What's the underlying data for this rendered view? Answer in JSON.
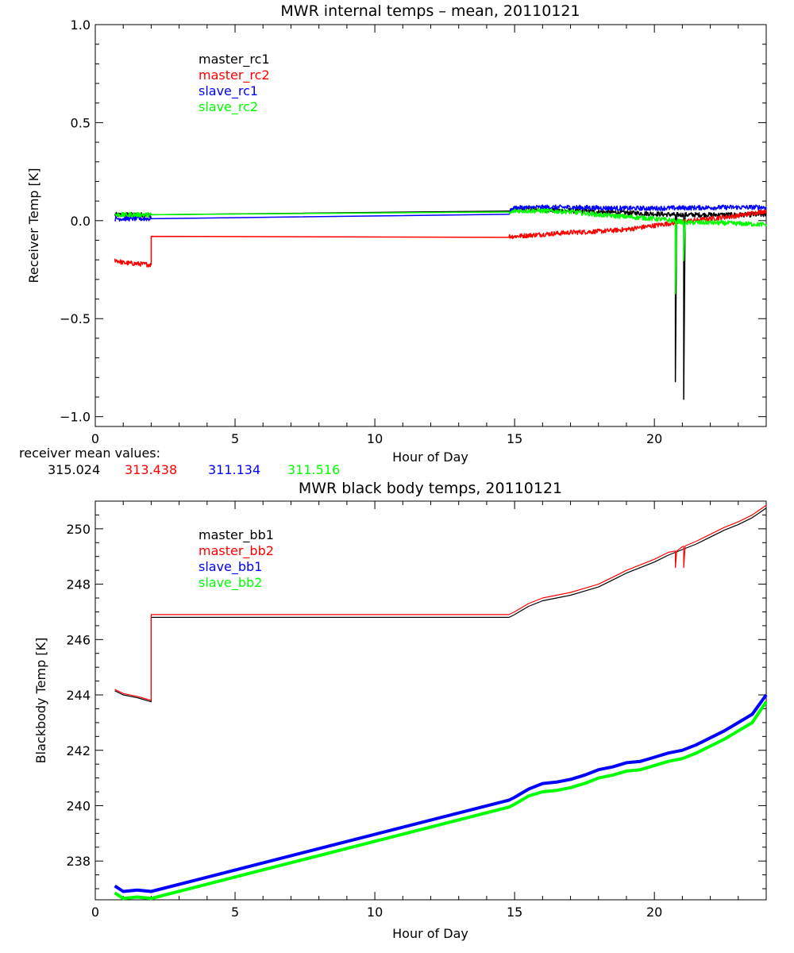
{
  "colors": {
    "black": "#000000",
    "red": "#ff0000",
    "blue": "#0000ff",
    "green": "#00ff00"
  },
  "receiver_mean": {
    "label": "receiver mean values:",
    "values": [
      {
        "text": "315.024",
        "color": "#000000"
      },
      {
        "text": "313.438",
        "color": "#ff0000"
      },
      {
        "text": "311.134",
        "color": "#0000ff"
      },
      {
        "text": "311.516",
        "color": "#00ff00"
      }
    ]
  },
  "chart_data": [
    {
      "type": "line",
      "title": "MWR internal temps – mean, 20110121",
      "xlabel": "Hour of Day",
      "ylabel": "Receiver Temp [K]",
      "xlim": [
        0,
        24
      ],
      "ylim": [
        -1.05,
        1.0
      ],
      "xticks": [
        0,
        5,
        10,
        15,
        20
      ],
      "xtick_labels": [
        "0",
        "5",
        "10",
        "15",
        "20"
      ],
      "yticks": [
        -1.0,
        -0.5,
        0.0,
        0.5,
        1.0
      ],
      "ytick_labels": [
        "−1.0",
        "−0.5",
        "0.0",
        "0.5",
        "1.0"
      ],
      "legend": "top-left",
      "series": [
        {
          "name": "master_rc1",
          "color": "#000000",
          "noisy": true,
          "x": [
            0.7,
            2.0,
            14.8,
            15.0,
            16.0,
            17.0,
            18.0,
            19.0,
            20.0,
            20.7,
            20.75,
            20.75,
            20.8,
            21.05,
            21.05,
            21.1,
            22.0,
            23.0,
            24.0
          ],
          "y": [
            0.03,
            0.03,
            0.045,
            0.06,
            0.055,
            0.05,
            0.045,
            0.04,
            0.035,
            0.03,
            0.03,
            -0.82,
            0.03,
            0.03,
            -0.9,
            0.03,
            0.03,
            0.03,
            0.03
          ]
        },
        {
          "name": "master_rc2",
          "color": "#ff0000",
          "noisy": true,
          "x": [
            0.7,
            1.0,
            1.5,
            2.0,
            2.0,
            14.8,
            15.0,
            16.0,
            17.0,
            18.0,
            19.0,
            20.0,
            21.0,
            22.0,
            23.0,
            24.0
          ],
          "y": [
            -0.2,
            -0.215,
            -0.22,
            -0.225,
            -0.08,
            -0.08,
            -0.08,
            -0.07,
            -0.06,
            -0.055,
            -0.045,
            -0.025,
            -0.005,
            0.01,
            0.025,
            0.05
          ]
        },
        {
          "name": "slave_rc1",
          "color": "#0000ff",
          "noisy": true,
          "x": [
            0.7,
            2.0,
            14.8,
            15.0,
            16.0,
            17.0,
            18.0,
            19.0,
            20.0,
            21.0,
            22.0,
            23.0,
            24.0
          ],
          "y": [
            0.01,
            0.01,
            0.04,
            0.065,
            0.068,
            0.068,
            0.065,
            0.063,
            0.063,
            0.065,
            0.067,
            0.068,
            0.068
          ]
        },
        {
          "name": "slave_rc2",
          "color": "#00ff00",
          "noisy": true,
          "x": [
            0.7,
            2.0,
            14.8,
            15.0,
            16.0,
            17.0,
            18.0,
            19.0,
            20.0,
            20.7,
            20.75,
            20.75,
            20.8,
            21.05,
            21.05,
            21.1,
            22.0,
            23.0,
            24.0
          ],
          "y": [
            0.03,
            0.03,
            0.035,
            0.05,
            0.05,
            0.045,
            0.03,
            0.02,
            0.01,
            0.0,
            0.0,
            -0.38,
            0.0,
            -0.01,
            -0.2,
            -0.01,
            -0.01,
            -0.015,
            -0.02
          ]
        }
      ]
    },
    {
      "type": "line",
      "title": "MWR black body temps, 20110121",
      "xlabel": "Hour of Day",
      "ylabel": "Blackbody Temp [K]",
      "xlim": [
        0,
        24
      ],
      "ylim": [
        236.6,
        251.0
      ],
      "xticks": [
        0,
        5,
        10,
        15,
        20
      ],
      "xtick_labels": [
        "0",
        "5",
        "10",
        "15",
        "20"
      ],
      "yticks": [
        238,
        240,
        242,
        244,
        246,
        248,
        250
      ],
      "ytick_labels": [
        "238",
        "240",
        "242",
        "244",
        "246",
        "248",
        "250"
      ],
      "legend": "top-left",
      "series": [
        {
          "name": "master_bb1",
          "color": "#000000",
          "noisy": false,
          "x": [
            0.7,
            1.0,
            1.5,
            2.0,
            2.0,
            14.8,
            15.0,
            15.5,
            16.0,
            16.5,
            17.0,
            17.5,
            18.0,
            18.5,
            19.0,
            19.5,
            20.0,
            20.5,
            21.0,
            21.5,
            22.0,
            22.5,
            23.0,
            23.5,
            24.0
          ],
          "y": [
            244.15,
            244.0,
            243.9,
            243.75,
            246.8,
            246.8,
            246.9,
            247.2,
            247.4,
            247.5,
            247.6,
            247.75,
            247.9,
            248.15,
            248.4,
            248.6,
            248.8,
            249.05,
            249.25,
            249.45,
            249.7,
            249.95,
            250.15,
            250.4,
            250.75
          ]
        },
        {
          "name": "master_bb2",
          "color": "#ff0000",
          "noisy": false,
          "x": [
            0.7,
            1.0,
            1.5,
            2.0,
            2.0,
            14.8,
            15.0,
            15.5,
            16.0,
            16.5,
            17.0,
            17.5,
            18.0,
            18.5,
            19.0,
            19.5,
            20.0,
            20.5,
            20.75,
            20.75,
            20.8,
            21.0,
            21.05,
            21.05,
            21.1,
            21.5,
            22.0,
            22.5,
            23.0,
            23.5,
            24.0
          ],
          "y": [
            244.2,
            244.05,
            243.95,
            243.8,
            246.9,
            246.9,
            247.0,
            247.3,
            247.5,
            247.6,
            247.7,
            247.85,
            248.0,
            248.25,
            248.5,
            248.7,
            248.9,
            249.15,
            249.2,
            248.6,
            249.2,
            249.35,
            249.37,
            248.6,
            249.38,
            249.55,
            249.8,
            250.05,
            250.25,
            250.5,
            250.85
          ]
        },
        {
          "name": "slave_bb1",
          "color": "#0000ff",
          "noisy": false,
          "width": 4,
          "x": [
            0.7,
            1.0,
            1.5,
            2.0,
            14.8,
            15.0,
            15.5,
            16.0,
            16.5,
            17.0,
            17.5,
            18.0,
            18.5,
            19.0,
            19.5,
            20.0,
            20.5,
            21.0,
            21.5,
            22.0,
            22.5,
            23.0,
            23.5,
            24.0
          ],
          "y": [
            237.1,
            236.9,
            236.95,
            236.9,
            240.2,
            240.3,
            240.6,
            240.8,
            240.85,
            240.95,
            241.1,
            241.3,
            241.4,
            241.55,
            241.6,
            241.75,
            241.9,
            242.0,
            242.2,
            242.45,
            242.7,
            243.0,
            243.3,
            244.0
          ]
        },
        {
          "name": "slave_bb2",
          "color": "#00ff00",
          "noisy": false,
          "width": 4,
          "x": [
            0.7,
            1.0,
            1.5,
            2.0,
            14.8,
            15.0,
            15.5,
            16.0,
            16.5,
            17.0,
            17.5,
            18.0,
            18.5,
            19.0,
            19.5,
            20.0,
            20.5,
            21.0,
            21.5,
            22.0,
            22.5,
            23.0,
            23.5,
            24.0
          ],
          "y": [
            236.85,
            236.65,
            236.7,
            236.65,
            239.95,
            240.05,
            240.35,
            240.5,
            240.55,
            240.65,
            240.8,
            241.0,
            241.1,
            241.25,
            241.3,
            241.45,
            241.6,
            241.7,
            241.9,
            242.15,
            242.4,
            242.7,
            243.0,
            243.75
          ]
        }
      ]
    }
  ]
}
